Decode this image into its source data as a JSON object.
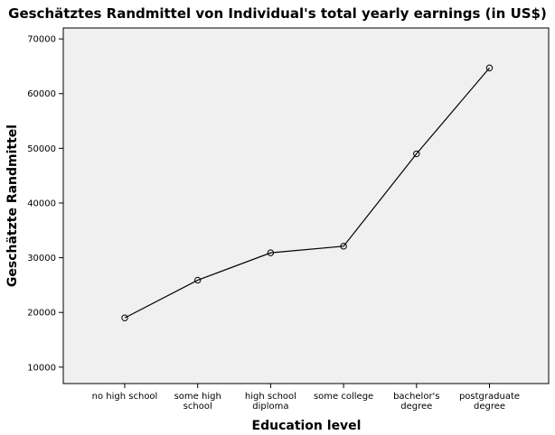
{
  "chart_data": {
    "type": "line",
    "title": "Geschätztes Randmittel von Individual's total yearly earnings (in US$)",
    "xlabel": "Education level",
    "ylabel": "Geschätzte Randmittel",
    "categories": [
      [
        "no high school"
      ],
      [
        "some high",
        "school"
      ],
      [
        "high school",
        "diploma"
      ],
      [
        "some college"
      ],
      [
        "bachelor's",
        "degree"
      ],
      [
        "postgraduate",
        "degree"
      ]
    ],
    "series": [
      {
        "values": [
          19000,
          25900,
          30900,
          32100,
          49000,
          64700
        ]
      }
    ],
    "ylim": [
      7000,
      72000
    ],
    "yticks": [
      10000,
      20000,
      30000,
      40000,
      50000,
      60000,
      70000
    ],
    "grid": false
  }
}
